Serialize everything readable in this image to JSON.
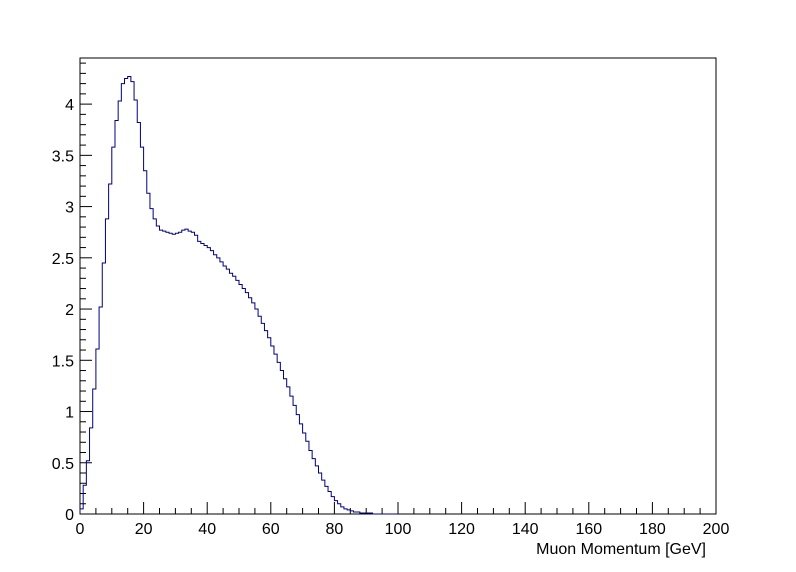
{
  "chart_data": {
    "type": "histogram",
    "title": "",
    "xlabel": "Muon Momentum [GeV]",
    "ylabel": "",
    "xlim": [
      0,
      200
    ],
    "ylim": [
      0,
      4.45
    ],
    "grid": false,
    "legend": "none",
    "line_color": "#000080",
    "bin_width": 1,
    "x_ticks": [
      "0",
      "20",
      "40",
      "60",
      "80",
      "100",
      "120",
      "140",
      "160",
      "180",
      "200"
    ],
    "y_ticks": [
      "0",
      "0.5",
      "1",
      "1.5",
      "2",
      "2.5",
      "3",
      "3.5",
      "4"
    ],
    "series": [
      {
        "bins_start": 0,
        "values": [
          0.05,
          0.28,
          0.52,
          0.84,
          1.22,
          1.61,
          2.02,
          2.45,
          2.88,
          3.22,
          3.58,
          3.84,
          4.03,
          4.2,
          4.25,
          4.27,
          4.22,
          4.04,
          3.82,
          3.58,
          3.35,
          3.13,
          2.98,
          2.88,
          2.81,
          2.77,
          2.76,
          2.75,
          2.74,
          2.73,
          2.74,
          2.75,
          2.77,
          2.78,
          2.76,
          2.75,
          2.72,
          2.66,
          2.64,
          2.62,
          2.6,
          2.57,
          2.53,
          2.5,
          2.46,
          2.42,
          2.39,
          2.35,
          2.32,
          2.28,
          2.24,
          2.2,
          2.16,
          2.11,
          2.06,
          2.0,
          1.93,
          1.86,
          1.79,
          1.72,
          1.64,
          1.56,
          1.48,
          1.4,
          1.32,
          1.24,
          1.15,
          1.06,
          0.97,
          0.88,
          0.79,
          0.71,
          0.62,
          0.54,
          0.47,
          0.4,
          0.33,
          0.27,
          0.22,
          0.17,
          0.13,
          0.1,
          0.07,
          0.05,
          0.04,
          0.03,
          0.02,
          0.02,
          0.01,
          0.01,
          0.01,
          0.01,
          0.0,
          0.0,
          0.0,
          0.0,
          0.0,
          0.0,
          0.0,
          0.0
        ]
      }
    ]
  }
}
